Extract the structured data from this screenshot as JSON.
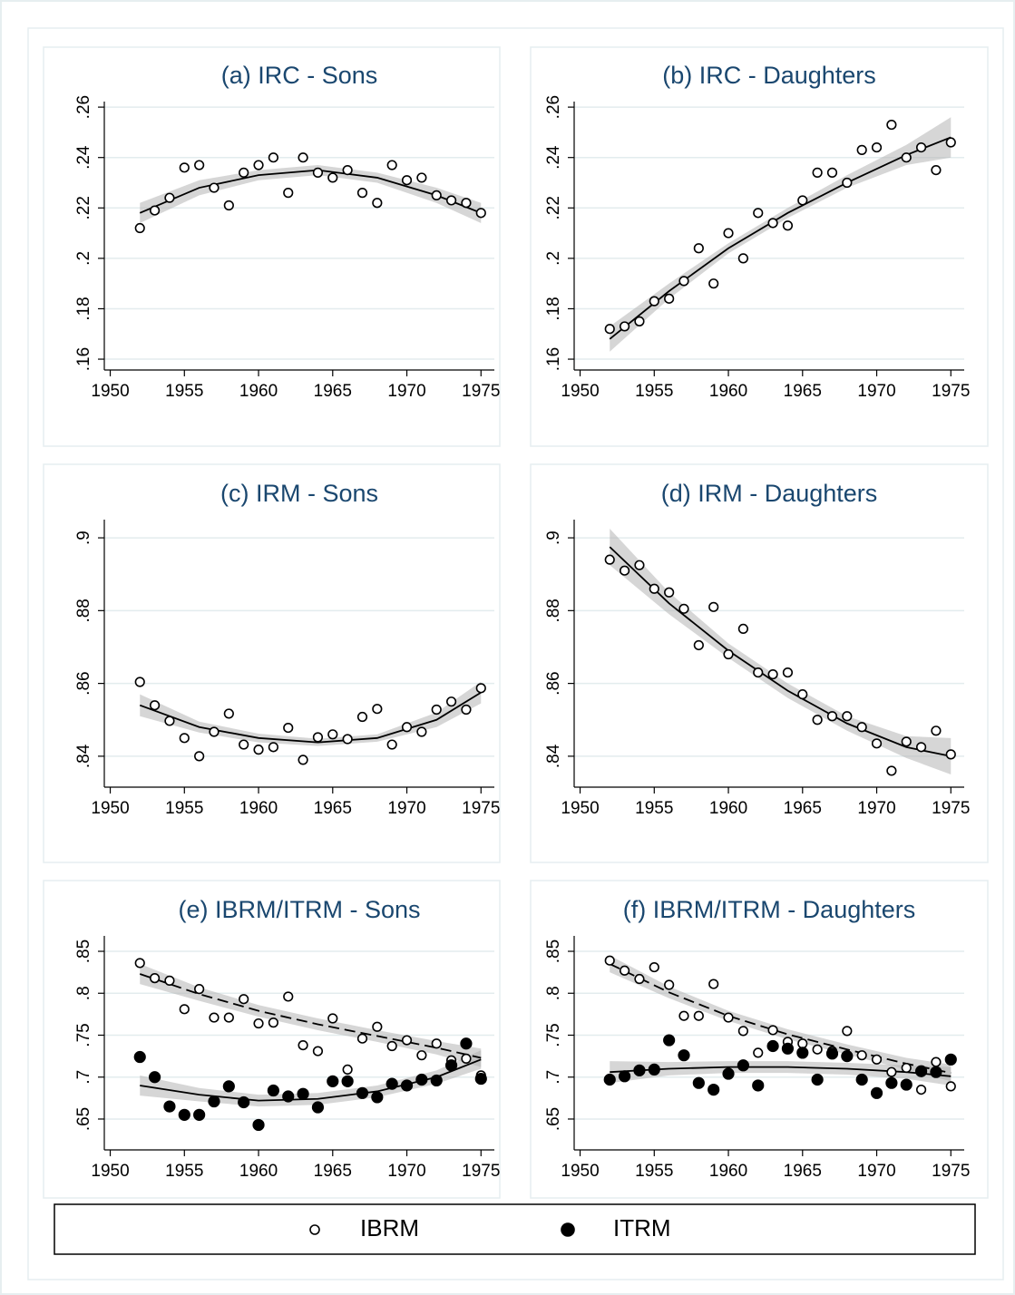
{
  "chart_data": [
    {
      "type": "scatter",
      "title": "(a) IRC - Sons",
      "x": [
        1952,
        1953,
        1954,
        1955,
        1956,
        1957,
        1958,
        1959,
        1960,
        1961,
        1962,
        1963,
        1964,
        1965,
        1966,
        1967,
        1968,
        1969,
        1970,
        1971,
        1972,
        1973,
        1974,
        1975
      ],
      "series": [
        {
          "marker": "hollow",
          "color": "#000000",
          "values": [
            0.212,
            0.219,
            0.224,
            0.236,
            0.237,
            0.228,
            0.221,
            0.234,
            0.237,
            0.24,
            0.226,
            0.24,
            0.234,
            0.232,
            0.235,
            0.226,
            0.222,
            0.237,
            0.231,
            0.232,
            0.225,
            0.223,
            0.222,
            0.218
          ],
          "fit": {
            "dashed": false,
            "x": [
              1952,
              1956,
              1960,
              1964,
              1968,
              1972,
              1975
            ],
            "values": [
              0.218,
              0.228,
              0.233,
              0.235,
              0.232,
              0.225,
              0.218
            ],
            "lower": [
              0.214,
              0.225,
              0.231,
              0.233,
              0.23,
              0.222,
              0.214
            ],
            "upper": [
              0.222,
              0.231,
              0.235,
              0.237,
              0.234,
              0.228,
              0.222
            ]
          }
        }
      ],
      "xlim": [
        1949.6,
        1975.9
      ],
      "xticks": [
        1950,
        1955,
        1960,
        1965,
        1970,
        1975
      ],
      "ylim": [
        0.1557,
        0.2622
      ],
      "yticks": [
        {
          "value": 0.16,
          "label": ".16"
        },
        {
          "value": 0.18,
          "label": ".18"
        },
        {
          "value": 0.2,
          "label": ".2"
        },
        {
          "value": 0.22,
          "label": ".22"
        },
        {
          "value": 0.24,
          "label": ".24"
        },
        {
          "value": 0.26,
          "label": ".26"
        }
      ],
      "grid": true
    },
    {
      "type": "scatter",
      "title": "(b) IRC - Daughters",
      "x": [
        1952,
        1953,
        1954,
        1955,
        1956,
        1957,
        1958,
        1959,
        1960,
        1961,
        1962,
        1963,
        1964,
        1965,
        1966,
        1967,
        1968,
        1969,
        1970,
        1971,
        1972,
        1973,
        1974,
        1975
      ],
      "series": [
        {
          "marker": "hollow",
          "color": "#000000",
          "values": [
            0.172,
            0.173,
            0.175,
            0.183,
            0.184,
            0.191,
            0.204,
            0.19,
            0.21,
            0.2,
            0.218,
            0.214,
            0.213,
            0.223,
            0.234,
            0.234,
            0.23,
            0.243,
            0.244,
            0.253,
            0.24,
            0.244,
            0.235,
            0.246
          ],
          "fit": {
            "dashed": false,
            "x": [
              1952,
              1956,
              1960,
              1964,
              1968,
              1972,
              1975
            ],
            "values": [
              0.168,
              0.187,
              0.204,
              0.218,
              0.23,
              0.241,
              0.248
            ],
            "lower": [
              0.163,
              0.184,
              0.202,
              0.216,
              0.228,
              0.237,
              0.24
            ],
            "upper": [
              0.173,
              0.19,
              0.206,
              0.22,
              0.233,
              0.245,
              0.256
            ]
          }
        }
      ],
      "xlim": [
        1949.6,
        1975.9
      ],
      "xticks": [
        1950,
        1955,
        1960,
        1965,
        1970,
        1975
      ],
      "ylim": [
        0.1557,
        0.2622
      ],
      "yticks": [
        {
          "value": 0.16,
          "label": ".16"
        },
        {
          "value": 0.18,
          "label": ".18"
        },
        {
          "value": 0.2,
          "label": ".2"
        },
        {
          "value": 0.22,
          "label": ".22"
        },
        {
          "value": 0.24,
          "label": ".24"
        },
        {
          "value": 0.26,
          "label": ".26"
        }
      ],
      "grid": true
    },
    {
      "type": "scatter",
      "title": "(c) IRM - Sons",
      "x": [
        1952,
        1953,
        1954,
        1955,
        1956,
        1957,
        1958,
        1959,
        1960,
        1961,
        1962,
        1963,
        1964,
        1965,
        1966,
        1967,
        1968,
        1969,
        1970,
        1971,
        1972,
        1973,
        1974,
        1975
      ],
      "series": [
        {
          "marker": "hollow",
          "color": "#000000",
          "values": [
            0.8604,
            0.854,
            0.8497,
            0.845,
            0.84,
            0.8467,
            0.8517,
            0.8432,
            0.8418,
            0.8425,
            0.8478,
            0.839,
            0.8452,
            0.846,
            0.8447,
            0.8508,
            0.853,
            0.8432,
            0.848,
            0.8467,
            0.8528,
            0.855,
            0.8528,
            0.8587
          ],
          "fit": {
            "dashed": false,
            "x": [
              1952,
              1956,
              1960,
              1964,
              1968,
              1972,
              1975
            ],
            "values": [
              0.854,
              0.848,
              0.845,
              0.8438,
              0.845,
              0.85,
              0.8575
            ],
            "lower": [
              0.851,
              0.8465,
              0.8438,
              0.8428,
              0.844,
              0.848,
              0.8545
            ],
            "upper": [
              0.857,
              0.8495,
              0.8462,
              0.8448,
              0.846,
              0.852,
              0.8605
            ]
          }
        }
      ],
      "xlim": [
        1949.6,
        1975.9
      ],
      "xticks": [
        1950,
        1955,
        1960,
        1965,
        1970,
        1975
      ],
      "ylim": [
        0.8315,
        0.905
      ],
      "yticks": [
        {
          "value": 0.84,
          "label": ".84"
        },
        {
          "value": 0.86,
          "label": ".86"
        },
        {
          "value": 0.88,
          "label": ".88"
        },
        {
          "value": 0.9,
          "label": ".9"
        }
      ],
      "grid": true
    },
    {
      "type": "scatter",
      "title": "(d) IRM - Daughters",
      "x": [
        1952,
        1953,
        1954,
        1955,
        1956,
        1957,
        1958,
        1959,
        1960,
        1961,
        1962,
        1963,
        1964,
        1965,
        1966,
        1967,
        1968,
        1969,
        1970,
        1971,
        1972,
        1973,
        1974,
        1975
      ],
      "series": [
        {
          "marker": "hollow",
          "color": "#000000",
          "values": [
            0.894,
            0.891,
            0.8925,
            0.886,
            0.885,
            0.8805,
            0.8705,
            0.881,
            0.868,
            0.875,
            0.863,
            0.8625,
            0.863,
            0.857,
            0.85,
            0.851,
            0.851,
            0.848,
            0.8435,
            0.836,
            0.844,
            0.8425,
            0.847,
            0.8405
          ],
          "fit": {
            "dashed": false,
            "x": [
              1952,
              1956,
              1960,
              1964,
              1968,
              1972,
              1975
            ],
            "values": [
              0.8975,
              0.882,
              0.869,
              0.858,
              0.849,
              0.8425,
              0.84
            ],
            "lower": [
              0.8925,
              0.879,
              0.867,
              0.856,
              0.847,
              0.8395,
              0.835
            ],
            "upper": [
              0.9025,
              0.885,
              0.871,
              0.86,
              0.851,
              0.8455,
              0.845
            ]
          }
        }
      ],
      "xlim": [
        1949.6,
        1975.9
      ],
      "xticks": [
        1950,
        1955,
        1960,
        1965,
        1970,
        1975
      ],
      "ylim": [
        0.8315,
        0.905
      ],
      "yticks": [
        {
          "value": 0.84,
          "label": ".84"
        },
        {
          "value": 0.86,
          "label": ".86"
        },
        {
          "value": 0.88,
          "label": ".88"
        },
        {
          "value": 0.9,
          "label": ".9"
        }
      ],
      "grid": true
    },
    {
      "type": "scatter",
      "title": "(e) IBRM/ITRM - Sons",
      "x": [
        1952,
        1953,
        1954,
        1955,
        1956,
        1957,
        1958,
        1959,
        1960,
        1961,
        1962,
        1963,
        1964,
        1965,
        1966,
        1967,
        1968,
        1969,
        1970,
        1971,
        1972,
        1973,
        1974,
        1975
      ],
      "series": [
        {
          "name": "IBRM",
          "marker": "hollow",
          "color": "#000000",
          "values": [
            0.836,
            0.818,
            0.815,
            0.781,
            0.805,
            0.771,
            0.771,
            0.793,
            0.764,
            0.765,
            0.796,
            0.738,
            0.731,
            0.77,
            0.709,
            0.746,
            0.76,
            0.737,
            0.744,
            0.726,
            0.74,
            0.72,
            0.722,
            0.702
          ],
          "fit": {
            "dashed": true,
            "x": [
              1952,
              1956,
              1960,
              1964,
              1968,
              1972,
              1975
            ],
            "values": [
              0.823,
              0.799,
              0.779,
              0.763,
              0.749,
              0.735,
              0.723
            ],
            "lower": [
              0.811,
              0.791,
              0.772,
              0.756,
              0.742,
              0.727,
              0.712
            ],
            "upper": [
              0.835,
              0.807,
              0.786,
              0.77,
              0.756,
              0.743,
              0.734
            ]
          }
        },
        {
          "name": "ITRM",
          "marker": "filled",
          "color": "#000000",
          "values": [
            0.724,
            0.7,
            0.665,
            0.655,
            0.655,
            0.671,
            0.689,
            0.67,
            0.643,
            0.684,
            0.677,
            0.68,
            0.664,
            0.695,
            0.695,
            0.681,
            0.676,
            0.692,
            0.69,
            0.697,
            0.696,
            0.714,
            0.74,
            0.698
          ],
          "fit": {
            "dashed": false,
            "x": [
              1952,
              1956,
              1960,
              1964,
              1968,
              1972,
              1975
            ],
            "values": [
              0.69,
              0.679,
              0.672,
              0.674,
              0.683,
              0.7,
              0.721
            ],
            "lower": [
              0.678,
              0.671,
              0.665,
              0.667,
              0.676,
              0.692,
              0.71
            ],
            "upper": [
              0.702,
              0.687,
              0.679,
              0.681,
              0.69,
              0.708,
              0.732
            ]
          }
        }
      ],
      "xlim": [
        1949.6,
        1975.9
      ],
      "xticks": [
        1950,
        1955,
        1960,
        1965,
        1970,
        1975
      ],
      "ylim": [
        0.6132,
        0.8684
      ],
      "yticks": [
        {
          "value": 0.65,
          "label": ".65"
        },
        {
          "value": 0.7,
          "label": ".7"
        },
        {
          "value": 0.75,
          "label": ".75"
        },
        {
          "value": 0.8,
          "label": ".8"
        },
        {
          "value": 0.85,
          "label": ".85"
        }
      ],
      "grid": true
    },
    {
      "type": "scatter",
      "title": "(f) IBRM/ITRM - Daughters",
      "x": [
        1952,
        1953,
        1954,
        1955,
        1956,
        1957,
        1958,
        1959,
        1960,
        1961,
        1962,
        1963,
        1964,
        1965,
        1966,
        1967,
        1968,
        1969,
        1970,
        1971,
        1972,
        1973,
        1974,
        1975
      ],
      "series": [
        {
          "name": "IBRM",
          "marker": "hollow",
          "color": "#000000",
          "values": [
            0.839,
            0.827,
            0.817,
            0.831,
            0.81,
            0.773,
            0.773,
            0.811,
            0.771,
            0.755,
            0.729,
            0.756,
            0.742,
            0.74,
            0.733,
            0.731,
            0.755,
            0.726,
            0.721,
            0.706,
            0.711,
            0.685,
            0.718,
            0.689
          ],
          "fit": {
            "dashed": true,
            "x": [
              1952,
              1956,
              1960,
              1964,
              1968,
              1972,
              1975
            ],
            "values": [
              0.835,
              0.801,
              0.773,
              0.751,
              0.733,
              0.716,
              0.705
            ],
            "lower": [
              0.825,
              0.794,
              0.767,
              0.745,
              0.727,
              0.709,
              0.695
            ],
            "upper": [
              0.845,
              0.808,
              0.779,
              0.757,
              0.739,
              0.723,
              0.715
            ]
          }
        },
        {
          "name": "ITRM",
          "marker": "filled",
          "color": "#000000",
          "values": [
            0.697,
            0.701,
            0.708,
            0.709,
            0.744,
            0.726,
            0.693,
            0.685,
            0.704,
            0.714,
            0.69,
            0.737,
            0.734,
            0.729,
            0.697,
            0.728,
            0.725,
            0.697,
            0.681,
            0.693,
            0.691,
            0.707,
            0.706,
            0.721
          ],
          "fit": {
            "dashed": false,
            "x": [
              1952,
              1956,
              1960,
              1964,
              1968,
              1972,
              1975
            ],
            "values": [
              0.706,
              0.71,
              0.712,
              0.712,
              0.71,
              0.706,
              0.701
            ],
            "lower": [
              0.693,
              0.702,
              0.705,
              0.705,
              0.703,
              0.698,
              0.69
            ],
            "upper": [
              0.719,
              0.718,
              0.719,
              0.719,
              0.717,
              0.714,
              0.712
            ]
          }
        }
      ],
      "xlim": [
        1949.6,
        1975.9
      ],
      "xticks": [
        1950,
        1955,
        1960,
        1965,
        1970,
        1975
      ],
      "ylim": [
        0.6132,
        0.8684
      ],
      "yticks": [
        {
          "value": 0.65,
          "label": ".65"
        },
        {
          "value": 0.7,
          "label": ".7"
        },
        {
          "value": 0.75,
          "label": ".75"
        },
        {
          "value": 0.8,
          "label": ".8"
        },
        {
          "value": 0.85,
          "label": ".85"
        }
      ],
      "grid": true
    }
  ]
}
